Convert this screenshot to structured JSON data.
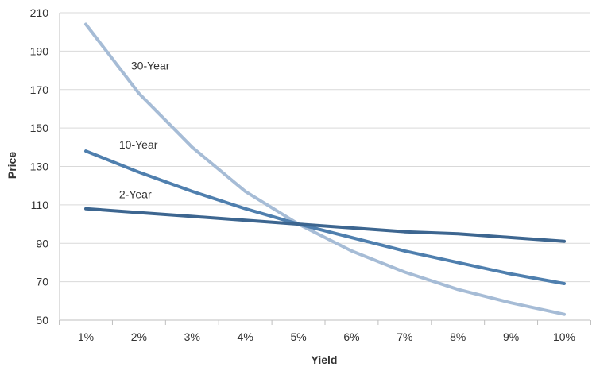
{
  "chart_data": {
    "type": "line",
    "xlabel": "Yield",
    "ylabel": "Price",
    "categories": [
      "1%",
      "2%",
      "3%",
      "4%",
      "5%",
      "6%",
      "7%",
      "8%",
      "9%",
      "10%"
    ],
    "x": [
      1,
      2,
      3,
      4,
      5,
      6,
      7,
      8,
      9,
      10
    ],
    "ylim": [
      50,
      210
    ],
    "yticks": [
      "50",
      "70",
      "90",
      "110",
      "130",
      "150",
      "170",
      "190",
      "210"
    ],
    "grid": "horizontal",
    "legend": "none (inline series labels)",
    "series": [
      {
        "name": "30-Year",
        "color": "#a6bcd6",
        "values": [
          204,
          168,
          140,
          117,
          100,
          86,
          75,
          66,
          59,
          53
        ]
      },
      {
        "name": "10-Year",
        "color": "#4f7fae",
        "values": [
          138,
          127,
          117,
          108,
          100,
          93,
          86,
          80,
          74,
          69
        ]
      },
      {
        "name": "2-Year",
        "color": "#3d6690",
        "values": [
          108,
          106,
          104,
          102,
          100,
          98,
          96,
          95,
          93,
          91
        ]
      }
    ]
  }
}
